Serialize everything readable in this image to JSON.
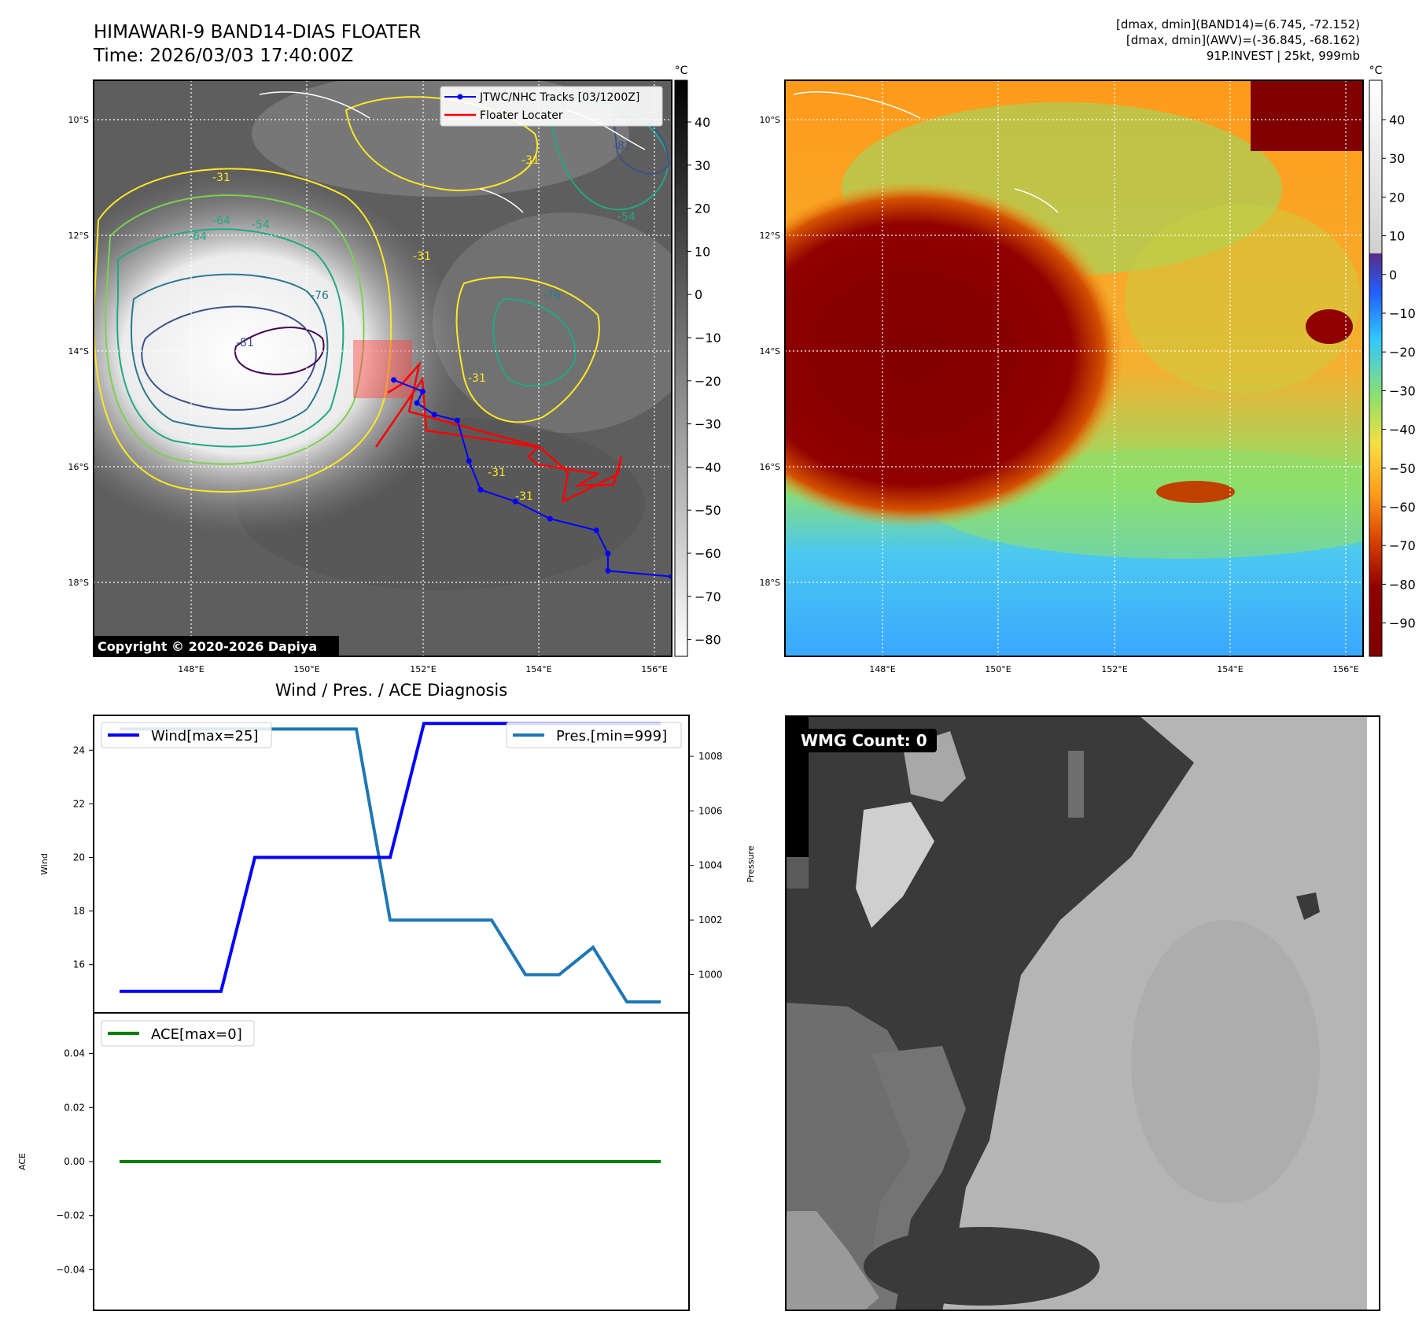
{
  "header": {
    "title_line1": "HIMAWARI-9 BAND14-DIAS FLOATER",
    "title_line2": "Time: 2026/03/03 17:40:00Z",
    "info_line1": "[dmax, dmin](BAND14)=(6.745, -72.152)",
    "info_line2": "[dmax, dmin](AWV)=(-36.845, -68.162)",
    "info_line3": "91P.INVEST | 25kt, 999mb"
  },
  "ir_map": {
    "lat_labels": [
      "10°S",
      "12°S",
      "14°S",
      "16°S",
      "18°S"
    ],
    "lon_labels": [
      "148°E",
      "150°E",
      "152°E",
      "154°E",
      "156°E"
    ],
    "legend": {
      "track_label": "JTWC/NHC Tracks [03/1200Z]",
      "floater_label": "Floater Locater",
      "track_color": "#0000ff",
      "floater_color": "#ff0000"
    },
    "copyright": "Copyright © 2020-2026 Dapiya",
    "contour_labels": [
      "-31",
      "-54",
      "-64",
      "-76",
      "-81",
      "-31",
      "-54",
      "-64",
      "-76",
      "-31",
      "-31",
      "-31",
      "-31",
      "-81"
    ],
    "colorbar": {
      "unit": "°C",
      "ticks": [
        "40",
        "30",
        "20",
        "10",
        "0",
        "−10",
        "−20",
        "−30",
        "−40",
        "−50",
        "−60",
        "−70",
        "−80"
      ]
    },
    "track_points": [
      {
        "lon": 156.3,
        "lat": -17.9
      },
      {
        "lon": 155.2,
        "lat": -17.8
      },
      {
        "lon": 155.2,
        "lat": -17.5
      },
      {
        "lon": 155.0,
        "lat": -17.1
      },
      {
        "lon": 154.2,
        "lat": -16.9
      },
      {
        "lon": 153.6,
        "lat": -16.6
      },
      {
        "lon": 153.0,
        "lat": -16.4
      },
      {
        "lon": 152.8,
        "lat": -15.9
      },
      {
        "lon": 152.6,
        "lat": -15.2
      },
      {
        "lon": 152.2,
        "lat": -15.1
      },
      {
        "lon": 151.9,
        "lat": -14.9
      },
      {
        "lon": 152.0,
        "lat": -14.7
      },
      {
        "lon": 151.5,
        "lat": -14.5
      }
    ]
  },
  "awv_map": {
    "lat_labels": [
      "10°S",
      "12°S",
      "14°S",
      "16°S",
      "18°S"
    ],
    "lon_labels": [
      "148°E",
      "150°E",
      "152°E",
      "154°E",
      "156°E"
    ],
    "colorbar": {
      "unit": "°C",
      "ticks": [
        "40",
        "30",
        "20",
        "10",
        "0",
        "−10",
        "−20",
        "−30",
        "−40",
        "−50",
        "−60",
        "−70",
        "−80",
        "−90"
      ]
    }
  },
  "diagnosis": {
    "title": "Wind / Pres. / ACE Diagnosis",
    "wind_legend": "Wind[max=25]",
    "pres_legend": "Pres.[min=999]",
    "ace_legend": "ACE[max=0]",
    "wind_axis_label": "Wind",
    "pres_axis_label": "Pressure",
    "ace_axis_label": "ACE",
    "colors": {
      "wind": "#0000ff",
      "pressure": "#1f77b4",
      "ace": "#008000"
    }
  },
  "wmg": {
    "label": "WMG Count: 0"
  },
  "chart_data": [
    {
      "type": "line",
      "title": "Wind / Pres. / ACE Diagnosis",
      "ylabel": "Wind",
      "y2label": "Pressure",
      "x": [
        0,
        1,
        2,
        3,
        4,
        5,
        6,
        7,
        8,
        9,
        10,
        11,
        12,
        13,
        14,
        15,
        16
      ],
      "series": [
        {
          "name": "Wind[max=25]",
          "axis": "left",
          "values": [
            15,
            15,
            15,
            15,
            20,
            20,
            20,
            20,
            20,
            25,
            25,
            25,
            25,
            25,
            25,
            25,
            25
          ]
        },
        {
          "name": "Pres.[min=999]",
          "axis": "right",
          "values": [
            1009,
            1009,
            1009,
            1009,
            1009,
            1009,
            1009,
            1009,
            1002,
            1002,
            1002,
            1002,
            1000,
            1000,
            1001,
            999,
            999
          ]
        }
      ],
      "ylim": [
        14.2,
        25.3
      ],
      "y2lim": [
        998.6,
        1009.5
      ],
      "yticks": [
        16,
        18,
        20,
        22,
        24
      ],
      "y2ticks": [
        1000,
        1002,
        1004,
        1006,
        1008
      ]
    },
    {
      "type": "line",
      "ylabel": "ACE",
      "x": [
        0,
        16
      ],
      "series": [
        {
          "name": "ACE[max=0]",
          "values": [
            0,
            0
          ]
        }
      ],
      "ylim": [
        -0.055,
        0.055
      ],
      "yticks": [
        0.04,
        0.02,
        0.0,
        -0.02,
        -0.04
      ],
      "ytick_labels": [
        "0.04",
        "0.02",
        "0.00",
        "−0.02",
        "−0.04"
      ]
    }
  ]
}
